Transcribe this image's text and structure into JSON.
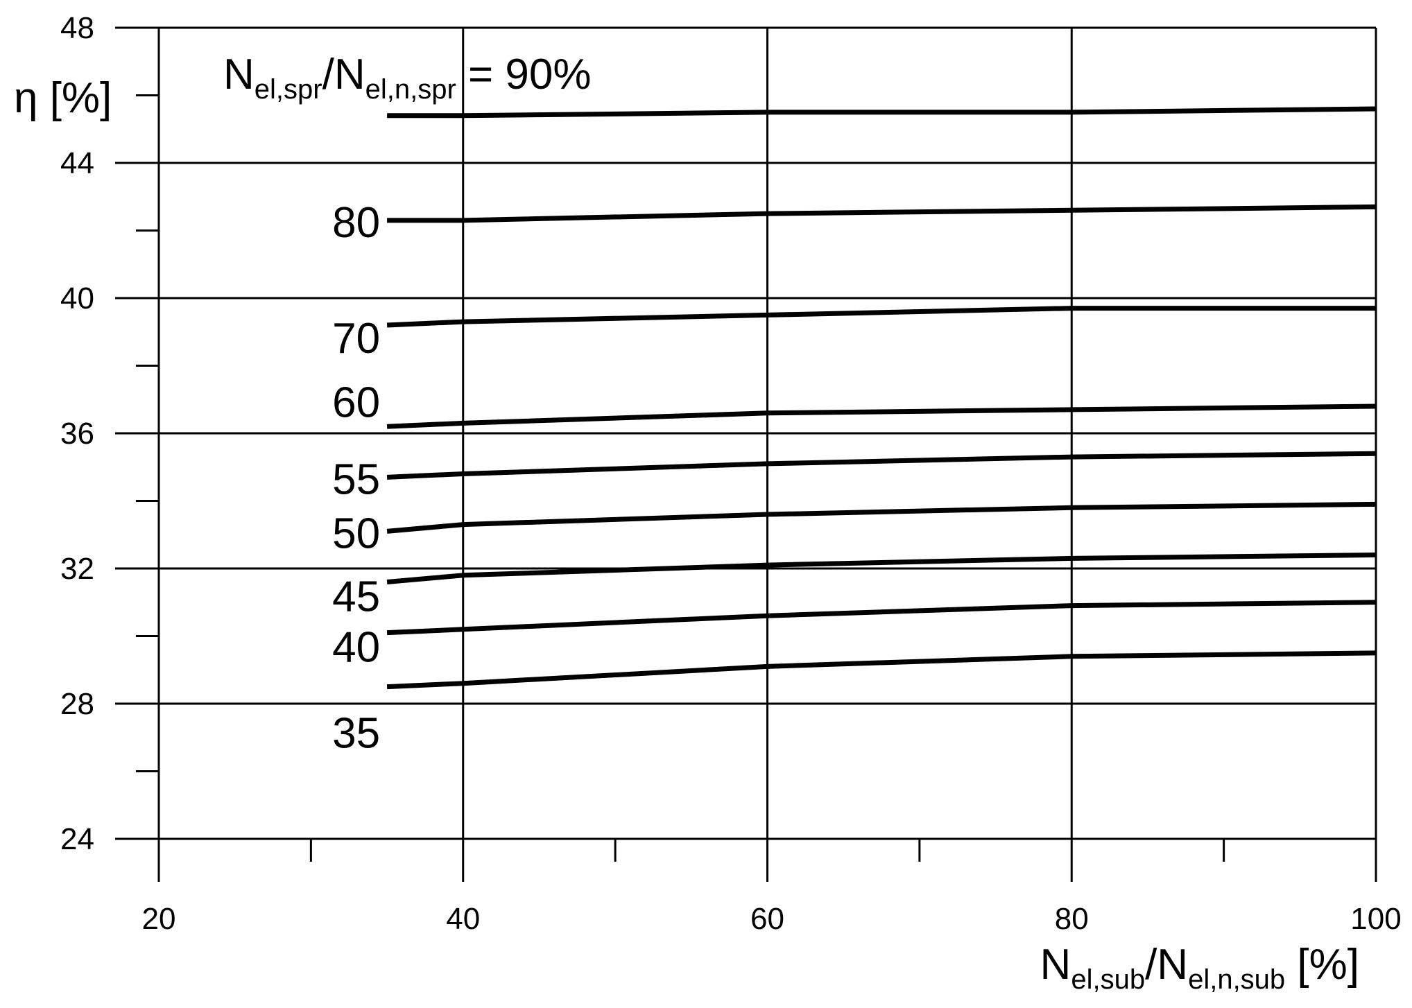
{
  "chart_data": {
    "type": "line",
    "title": "",
    "xlabel": {
      "main1": "N",
      "sub1": "el,sub",
      "mid": "/N",
      "sub2": "el,n,sub",
      "tail": " [%]"
    },
    "ylabel": "η [%]",
    "annotation": {
      "main1": "N",
      "sub1": "el,spr",
      "mid": "/N",
      "sub2": "el,n,spr",
      "tail": " = 90%"
    },
    "xlim": [
      20,
      100
    ],
    "ylim": [
      24,
      48
    ],
    "x_ticks": [
      "20",
      "40",
      "60",
      "80",
      "100"
    ],
    "y_ticks": [
      "24",
      "28",
      "32",
      "36",
      "40",
      "44",
      "48"
    ],
    "grid": true,
    "series": [
      {
        "label": "",
        "x": [
          35,
          40,
          60,
          80,
          100
        ],
        "y": [
          45.4,
          45.4,
          45.5,
          45.5,
          45.6
        ]
      },
      {
        "label": "80",
        "x": [
          35,
          40,
          60,
          80,
          100
        ],
        "y": [
          42.3,
          42.3,
          42.5,
          42.6,
          42.7
        ]
      },
      {
        "label": "70",
        "x": [
          35,
          40,
          60,
          80,
          100
        ],
        "y": [
          39.2,
          39.3,
          39.5,
          39.7,
          39.7
        ]
      },
      {
        "label": "60",
        "x": [
          35,
          40,
          60,
          80,
          100
        ],
        "y": [
          36.2,
          36.3,
          36.6,
          36.7,
          36.8
        ]
      },
      {
        "label": "55",
        "x": [
          35,
          40,
          60,
          80,
          100
        ],
        "y": [
          34.7,
          34.8,
          35.1,
          35.3,
          35.4
        ]
      },
      {
        "label": "50",
        "x": [
          35,
          40,
          60,
          80,
          100
        ],
        "y": [
          33.1,
          33.3,
          33.6,
          33.8,
          33.9
        ]
      },
      {
        "label": "45",
        "x": [
          35,
          40,
          60,
          80,
          100
        ],
        "y": [
          31.6,
          31.8,
          32.1,
          32.3,
          32.4
        ]
      },
      {
        "label": "40",
        "x": [
          35,
          40,
          60,
          80,
          100
        ],
        "y": [
          30.1,
          30.2,
          30.6,
          30.9,
          31.0
        ]
      },
      {
        "label": "35",
        "x": [
          35,
          40,
          60,
          80,
          100
        ],
        "y": [
          28.5,
          28.6,
          29.1,
          29.4,
          29.5
        ]
      }
    ]
  }
}
